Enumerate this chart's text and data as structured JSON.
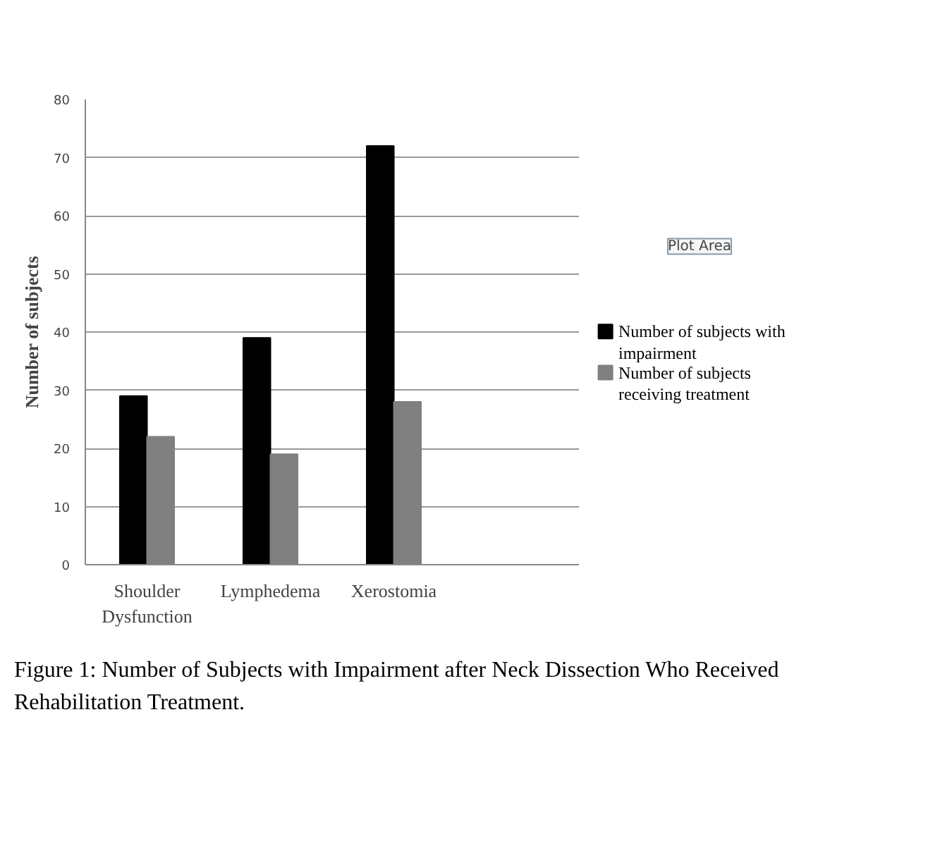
{
  "chart_data": {
    "type": "bar",
    "ylabel": "Number of subjects",
    "categories": [
      "Shoulder Dysfunction",
      "Lymphedema",
      "Xerostomia"
    ],
    "series": [
      {
        "name": "Number of subjects with impairment",
        "color": "#000000",
        "values": [
          29,
          39,
          72
        ]
      },
      {
        "name": "Number of subjects receiving treatment",
        "color": "#808080",
        "values": [
          22,
          19,
          28
        ]
      }
    ],
    "ylim": [
      0,
      80
    ],
    "yticks": [
      0,
      10,
      20,
      30,
      40,
      50,
      60,
      70,
      80
    ],
    "grid": "y",
    "legend": "right",
    "annotations": [
      "Plot Area",
      "Figure 1: Number of Subjects with Impairment after Neck Dissection Who Received Rehabilitation Treatment."
    ]
  }
}
